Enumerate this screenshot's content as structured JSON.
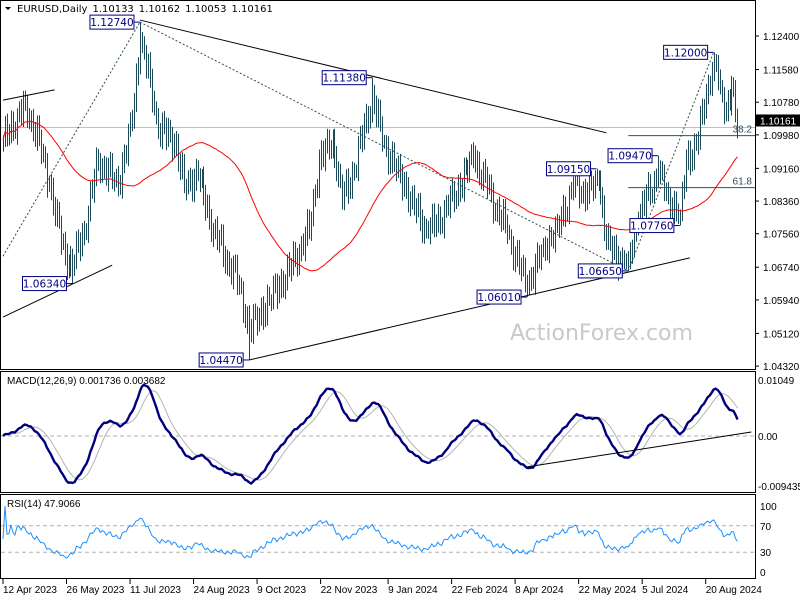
{
  "header": {
    "symbol": "EURUSD,Daily",
    "open": "1.10133",
    "high": "1.10162",
    "low": "1.10053",
    "close": "1.10161"
  },
  "watermark": "ActionForex.com",
  "colors": {
    "bars": "#1b4a5a",
    "moving_average": "#ff0000",
    "macd": "#00007f",
    "macd_signal": "#b4b4b4",
    "rsi": "#1e90ff",
    "label_border": "#00007f",
    "current_price_bg": "#000000"
  },
  "chart_data": {
    "type": "ohlc-bar",
    "price_axis": {
      "ticks": [
        "1.12400",
        "1.11580",
        "1.10780",
        "1.09980",
        "1.09160",
        "1.08360",
        "1.07560",
        "1.06740",
        "1.05940",
        "1.05120",
        "1.04320"
      ],
      "current_price": "1.10161"
    },
    "time_axis": {
      "ticks": [
        {
          "date": "2023-04-12",
          "label": "12 Apr 2023"
        },
        {
          "date": "2023-05-26",
          "label": "26 May 2023"
        },
        {
          "date": "2023-07-11",
          "label": "11 Jul 2023"
        },
        {
          "date": "2023-08-24",
          "label": "24 Aug 2023"
        },
        {
          "date": "2023-10-09",
          "label": "9 Oct 2023"
        },
        {
          "date": "2023-11-22",
          "label": "22 Nov 2023"
        },
        {
          "date": "2024-01-09",
          "label": "9 Jan 2024"
        },
        {
          "date": "2024-02-22",
          "label": "22 Feb 2024"
        },
        {
          "date": "2024-04-08",
          "label": "8 Apr 2024"
        },
        {
          "date": "2024-05-22",
          "label": "22 May 2024"
        },
        {
          "date": "2024-07-05",
          "label": "5 Jul 2024"
        },
        {
          "date": "2024-08-20",
          "label": "20 Aug 2024"
        }
      ]
    },
    "close_keypoints": [
      [
        "2023-04-12",
        1.0985
      ],
      [
        "2023-04-27",
        1.1071
      ],
      [
        "2023-05-08",
        1.0985
      ],
      [
        "2023-05-15",
        1.0875
      ],
      [
        "2023-05-25",
        1.0704
      ],
      [
        "2023-05-31",
        1.068
      ],
      [
        "2023-06-08",
        1.0765
      ],
      [
        "2023-06-19",
        1.0936
      ],
      [
        "2023-07-03",
        1.0875
      ],
      [
        "2023-07-12",
        1.1034
      ],
      [
        "2023-07-18",
        1.123
      ],
      [
        "2023-07-25",
        1.1132
      ],
      [
        "2023-07-31",
        1.101
      ],
      [
        "2023-08-10",
        1.0985
      ],
      [
        "2023-08-17",
        1.0875
      ],
      [
        "2023-08-28",
        1.09
      ],
      [
        "2023-09-07",
        1.0765
      ],
      [
        "2023-09-26",
        1.063
      ],
      [
        "2023-10-03",
        1.052
      ],
      [
        "2023-10-17",
        1.0594
      ],
      [
        "2023-10-31",
        1.0667
      ],
      [
        "2023-11-07",
        1.0716
      ],
      [
        "2023-11-14",
        1.0765
      ],
      [
        "2023-11-21",
        1.0936
      ],
      [
        "2023-11-30",
        1.0985
      ],
      [
        "2023-12-07",
        1.0839
      ],
      [
        "2023-12-15",
        1.0912
      ],
      [
        "2023-12-28",
        1.1096
      ],
      [
        "2024-01-04",
        1.0985
      ],
      [
        "2024-01-15",
        1.0912
      ],
      [
        "2024-01-19",
        1.088
      ],
      [
        "2024-01-24",
        1.0839
      ],
      [
        "2024-02-06",
        1.0758
      ],
      [
        "2024-02-20",
        1.0821
      ],
      [
        "2024-03-08",
        1.0944
      ],
      [
        "2024-03-19",
        1.087
      ],
      [
        "2024-04-02",
        1.0758
      ],
      [
        "2024-04-16",
        1.0626
      ],
      [
        "2024-04-26",
        1.0723
      ],
      [
        "2024-05-07",
        1.0772
      ],
      [
        "2024-05-17",
        1.087
      ],
      [
        "2024-05-28",
        1.0856
      ],
      [
        "2024-06-05",
        1.0887
      ],
      [
        "2024-06-11",
        1.0741
      ],
      [
        "2024-06-18",
        1.0699
      ],
      [
        "2024-06-26",
        1.0684
      ],
      [
        "2024-07-03",
        1.0797
      ],
      [
        "2024-07-17",
        1.0905
      ],
      [
        "2024-07-24",
        1.0846
      ],
      [
        "2024-08-01",
        1.08
      ],
      [
        "2024-08-06",
        1.0936
      ],
      [
        "2024-08-14",
        1.0985
      ],
      [
        "2024-08-20",
        1.11
      ],
      [
        "2024-08-26",
        1.1189
      ],
      [
        "2024-08-29",
        1.1115
      ],
      [
        "2024-09-03",
        1.1059
      ],
      [
        "2024-09-06",
        1.1115
      ],
      [
        "2024-09-11",
        1.10161
      ]
    ],
    "swing_labels": [
      {
        "date": "2023-07-18",
        "value": 1.1274,
        "label": "1.12740",
        "type": "high"
      },
      {
        "date": "2023-05-31",
        "value": 1.0634,
        "label": "1.06340",
        "type": "low"
      },
      {
        "date": "2023-10-03",
        "value": 1.0447,
        "label": "1.04470",
        "type": "low"
      },
      {
        "date": "2023-12-28",
        "value": 1.1138,
        "label": "1.11380",
        "type": "high"
      },
      {
        "date": "2024-04-16",
        "value": 1.0601,
        "label": "1.06010",
        "type": "low"
      },
      {
        "date": "2024-06-04",
        "value": 1.0915,
        "label": "1.09150",
        "type": "high"
      },
      {
        "date": "2024-06-26",
        "value": 1.0665,
        "label": "1.06650",
        "type": "low"
      },
      {
        "date": "2024-07-17",
        "value": 1.0947,
        "label": "1.09470",
        "type": "high"
      },
      {
        "date": "2024-08-01",
        "value": 1.0776,
        "label": "1.07760",
        "type": "low"
      },
      {
        "date": "2024-08-26",
        "value": 1.12,
        "label": "1.12000",
        "type": "high"
      }
    ],
    "trendlines": [
      {
        "from": [
          "2023-04-12",
          1.1083
        ],
        "to": [
          "2023-05-18",
          1.1108
        ],
        "style": "solid"
      },
      {
        "from": [
          "2023-04-12",
          1.0552
        ],
        "to": [
          "2023-06-28",
          1.0679
        ],
        "style": "solid"
      },
      {
        "from": [
          "2023-07-18",
          1.1279
        ],
        "to": [
          "2024-06-11",
          1.1003
        ],
        "style": "solid"
      },
      {
        "from": [
          "2023-04-12",
          1.0701
        ],
        "to": [
          "2023-07-18",
          1.1274
        ],
        "style": "dotted"
      },
      {
        "from": [
          "2023-07-18",
          1.1274
        ],
        "to": [
          "2024-06-26",
          1.0665
        ],
        "style": "dotted"
      },
      {
        "from": [
          "2023-10-03",
          1.0447
        ],
        "to": [
          "2024-08-08",
          1.0697
        ],
        "style": "solid"
      },
      {
        "from": [
          "2024-06-26",
          1.0665
        ],
        "to": [
          "2024-08-26",
          1.12
        ],
        "style": "dotted"
      }
    ],
    "fibonacci": {
      "from": [
        "2024-06-26",
        1.0665
      ],
      "to": [
        "2024-08-26",
        1.12
      ],
      "levels": [
        {
          "label": "38.2",
          "price": 1.0996
        },
        {
          "label": "61.8",
          "price": 1.0869
        }
      ]
    },
    "macd": {
      "title": "MACD(12,26,9) 0.001736 0.003682",
      "ylim": [
        -0.009435,
        0.01049
      ],
      "ticks": [
        "0.01049",
        "0.00",
        "-0.009435"
      ],
      "trendline": {
        "from": [
          "2024-04-16",
          -0.0054
        ],
        "to": [
          "2024-09-20",
          0.0007
        ]
      }
    },
    "rsi": {
      "title": "RSI(14) 47.9066",
      "ylim": [
        0,
        100
      ],
      "ticks": [
        "100",
        "70",
        "30",
        "0"
      ],
      "levels": [
        70,
        30
      ]
    }
  }
}
